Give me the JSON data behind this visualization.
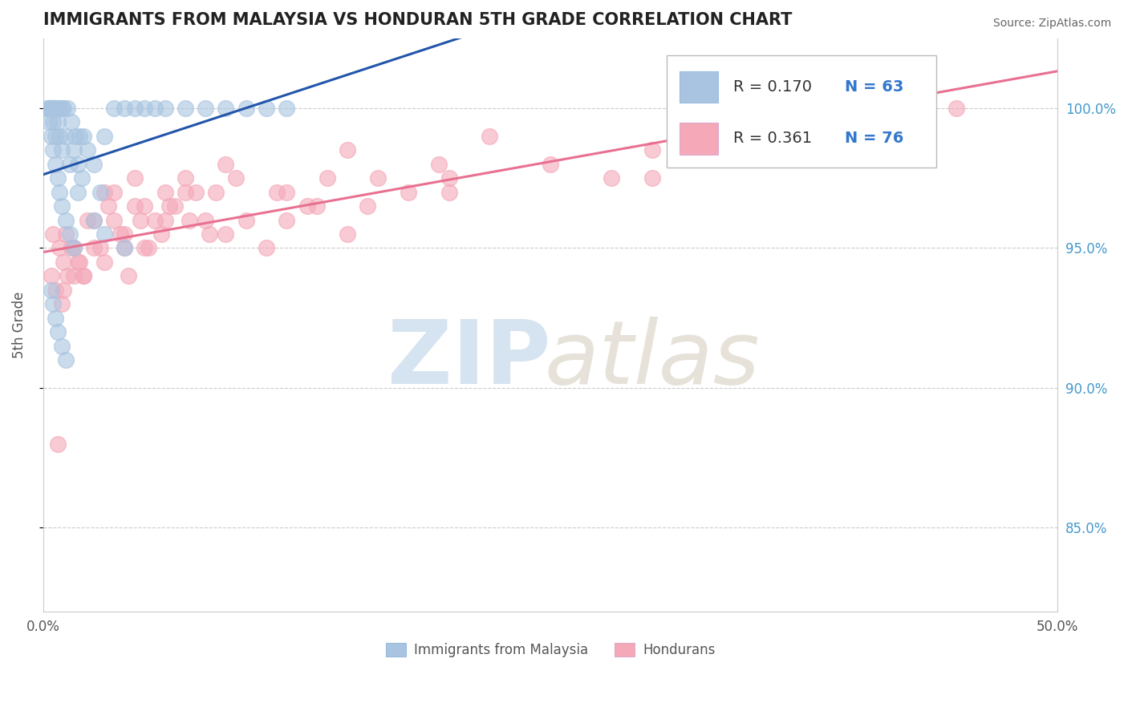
{
  "title": "IMMIGRANTS FROM MALAYSIA VS HONDURAN 5TH GRADE CORRELATION CHART",
  "source": "Source: ZipAtlas.com",
  "ylabel": "5th Grade",
  "xlim": [
    0.0,
    50.0
  ],
  "ylim": [
    82.0,
    102.5
  ],
  "yticks": [
    85.0,
    90.0,
    95.0,
    100.0
  ],
  "right_ytick_labels": [
    "85.0%",
    "90.0%",
    "95.0%",
    "100.0%"
  ],
  "legend_r_blue": "R = 0.170",
  "legend_n_blue": "N = 63",
  "legend_r_pink": "R = 0.361",
  "legend_n_pink": "N = 76",
  "blue_color": "#a8c4e0",
  "pink_color": "#f4a8b8",
  "blue_line_color": "#2255aa",
  "pink_line_color": "#e87090",
  "grid_color": "#cccccc",
  "blue_scatter_x": [
    0.2,
    0.3,
    0.3,
    0.4,
    0.4,
    0.5,
    0.5,
    0.5,
    0.6,
    0.6,
    0.7,
    0.7,
    0.8,
    0.8,
    0.9,
    0.9,
    1.0,
    1.1,
    1.2,
    1.3,
    1.4,
    1.5,
    1.6,
    1.7,
    1.8,
    1.9,
    2.0,
    2.2,
    2.5,
    2.8,
    3.0,
    3.5,
    4.0,
    4.5,
    5.0,
    5.5,
    6.0,
    7.0,
    8.0,
    9.0,
    10.0,
    11.0,
    12.0,
    0.3,
    0.4,
    0.5,
    0.6,
    0.7,
    0.8,
    0.9,
    1.1,
    1.3,
    1.5,
    1.7,
    2.5,
    3.0,
    4.0,
    0.4,
    0.5,
    0.6,
    0.7,
    0.9,
    1.1
  ],
  "blue_scatter_y": [
    100.0,
    100.0,
    100.0,
    100.0,
    100.0,
    100.0,
    100.0,
    99.5,
    100.0,
    99.0,
    100.0,
    99.5,
    100.0,
    99.0,
    100.0,
    98.5,
    100.0,
    99.0,
    100.0,
    98.0,
    99.5,
    98.5,
    99.0,
    98.0,
    99.0,
    97.5,
    99.0,
    98.5,
    98.0,
    97.0,
    99.0,
    100.0,
    100.0,
    100.0,
    100.0,
    100.0,
    100.0,
    100.0,
    100.0,
    100.0,
    100.0,
    100.0,
    100.0,
    99.5,
    99.0,
    98.5,
    98.0,
    97.5,
    97.0,
    96.5,
    96.0,
    95.5,
    95.0,
    97.0,
    96.0,
    95.5,
    95.0,
    93.5,
    93.0,
    92.5,
    92.0,
    91.5,
    91.0
  ],
  "pink_scatter_x": [
    0.5,
    0.8,
    1.0,
    1.2,
    1.5,
    1.8,
    2.0,
    2.5,
    3.0,
    3.5,
    4.0,
    4.5,
    5.0,
    5.5,
    6.0,
    6.5,
    7.0,
    7.5,
    8.0,
    8.5,
    9.0,
    10.0,
    11.0,
    12.0,
    13.0,
    14.0,
    15.0,
    16.0,
    18.0,
    20.0,
    22.0,
    25.0,
    28.0,
    30.0,
    35.0,
    40.0,
    45.0,
    0.4,
    0.6,
    0.9,
    1.1,
    1.4,
    1.7,
    2.2,
    2.8,
    3.2,
    3.8,
    4.2,
    4.8,
    5.2,
    5.8,
    6.2,
    7.2,
    8.2,
    9.5,
    11.5,
    13.5,
    16.5,
    19.5,
    1.0,
    2.0,
    3.0,
    4.0,
    5.0,
    7.0,
    9.0,
    12.0,
    15.0,
    20.0,
    30.0,
    0.7,
    1.5,
    2.5,
    3.5,
    4.5,
    6.0
  ],
  "pink_scatter_y": [
    95.5,
    95.0,
    94.5,
    94.0,
    95.0,
    94.5,
    94.0,
    95.0,
    94.5,
    96.0,
    95.5,
    96.5,
    95.0,
    96.0,
    97.0,
    96.5,
    97.5,
    97.0,
    96.0,
    97.0,
    98.0,
    96.0,
    95.0,
    97.0,
    96.5,
    97.5,
    98.5,
    96.5,
    97.0,
    97.5,
    99.0,
    98.0,
    97.5,
    98.5,
    99.0,
    99.5,
    100.0,
    94.0,
    93.5,
    93.0,
    95.5,
    95.0,
    94.5,
    96.0,
    95.0,
    96.5,
    95.5,
    94.0,
    96.0,
    95.0,
    95.5,
    96.5,
    96.0,
    95.5,
    97.5,
    97.0,
    96.5,
    97.5,
    98.0,
    93.5,
    94.0,
    97.0,
    95.0,
    96.5,
    97.0,
    95.5,
    96.0,
    95.5,
    97.0,
    97.5,
    88.0,
    94.0,
    96.0,
    97.0,
    97.5,
    96.0
  ]
}
